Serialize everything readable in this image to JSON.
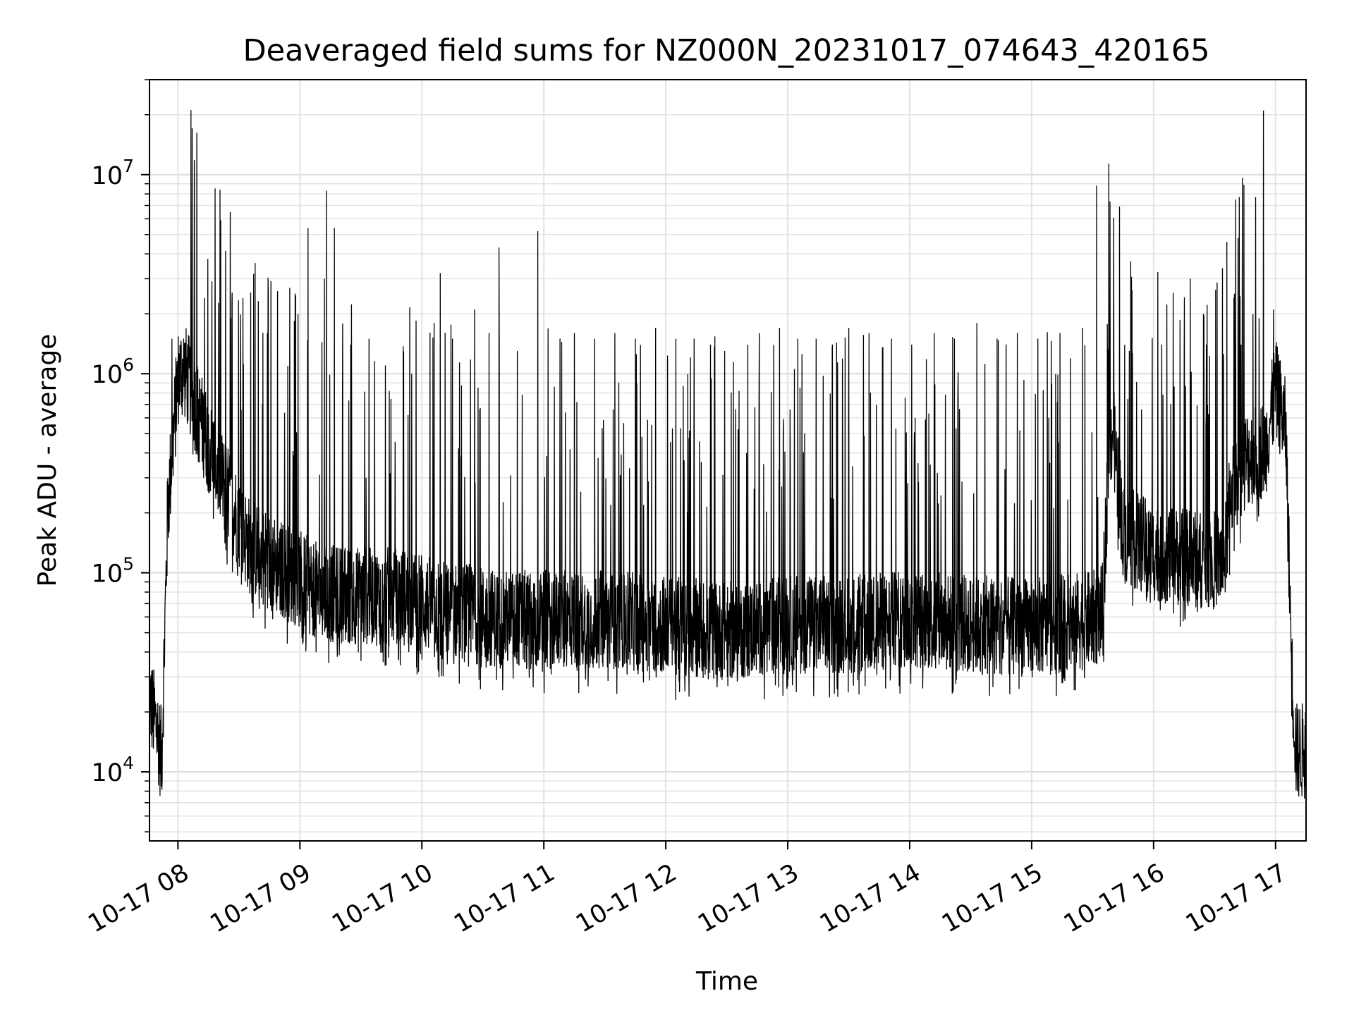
{
  "chart_data": {
    "type": "line",
    "title": "Deaveraged field sums for NZ000N_20231017_074643_420165",
    "xlabel": "Time",
    "ylabel": "Peak ADU - average",
    "yscale": "log",
    "ylim": [
      4500,
      30000000
    ],
    "xlim": [
      "10-17 07:46",
      "10-17 17:15"
    ],
    "grid": true,
    "line_color": "#000000",
    "x_ticks": [
      {
        "value": "10-17 08:00",
        "label": "10-17 08"
      },
      {
        "value": "10-17 09:00",
        "label": "10-17 09"
      },
      {
        "value": "10-17 10:00",
        "label": "10-17 10"
      },
      {
        "value": "10-17 11:00",
        "label": "10-17 11"
      },
      {
        "value": "10-17 12:00",
        "label": "10-17 12"
      },
      {
        "value": "10-17 13:00",
        "label": "10-17 13"
      },
      {
        "value": "10-17 14:00",
        "label": "10-17 14"
      },
      {
        "value": "10-17 15:00",
        "label": "10-17 15"
      },
      {
        "value": "10-17 16:00",
        "label": "10-17 16"
      },
      {
        "value": "10-17 17:00",
        "label": "10-17 17"
      }
    ],
    "y_ticks": [
      {
        "value": 10000,
        "base": "10",
        "exp": "4"
      },
      {
        "value": 100000,
        "base": "10",
        "exp": "5"
      },
      {
        "value": 1000000,
        "base": "10",
        "exp": "6"
      },
      {
        "value": 10000000,
        "base": "10",
        "exp": "7"
      }
    ],
    "envelope": {
      "x": [
        "10-17 07:46",
        "10-17 07:50",
        "10-17 07:52",
        "10-17 07:55",
        "10-17 08:00",
        "10-17 08:03",
        "10-17 08:10",
        "10-17 08:20",
        "10-17 08:35",
        "10-17 08:50",
        "10-17 09:10",
        "10-17 09:30",
        "10-17 09:50",
        "10-17 10:10",
        "10-17 10:40",
        "10-17 11:00",
        "10-17 11:30",
        "10-17 12:00",
        "10-17 12:30",
        "10-17 13:00",
        "10-17 13:30",
        "10-17 14:00",
        "10-17 14:30",
        "10-17 15:00",
        "10-17 15:30",
        "10-17 15:35",
        "10-17 15:38",
        "10-17 15:40",
        "10-17 15:45",
        "10-17 16:00",
        "10-17 16:20",
        "10-17 16:35",
        "10-17 16:38",
        "10-17 16:45",
        "10-17 16:55",
        "10-17 17:00",
        "10-17 17:05",
        "10-17 17:08",
        "10-17 17:10",
        "10-17 17:15"
      ],
      "base": [
        22000,
        15000,
        11000,
        200000,
        900000,
        1000000,
        600000,
        300000,
        130000,
        100000,
        75000,
        72000,
        72000,
        62000,
        55000,
        55000,
        55000,
        52000,
        48000,
        52000,
        52000,
        55000,
        52000,
        50000,
        55000,
        60000,
        400000,
        500000,
        150000,
        120000,
        110000,
        110000,
        250000,
        350000,
        400000,
        800000,
        500000,
        30000,
        12000,
        12000
      ]
    },
    "spikes": [
      {
        "x": "10-17 07:57",
        "y": 1500000
      },
      {
        "x": "10-17 08:08",
        "y": 1700000
      },
      {
        "x": "10-17 08:13",
        "y": 2400000
      },
      {
        "x": "10-17 08:21",
        "y": 5900000
      },
      {
        "x": "10-17 08:26",
        "y": 1900000
      },
      {
        "x": "10-17 08:32",
        "y": 2400000
      },
      {
        "x": "10-17 08:38",
        "y": 3600000
      },
      {
        "x": "10-17 08:44",
        "y": 1600000
      },
      {
        "x": "10-17 08:49",
        "y": 2600000
      },
      {
        "x": "10-17 08:55",
        "y": 2700000
      },
      {
        "x": "10-17 09:04",
        "y": 5400000
      },
      {
        "x": "10-17 09:12",
        "y": 3000000
      },
      {
        "x": "10-17 09:13",
        "y": 8300000
      },
      {
        "x": "10-17 09:17",
        "y": 5400000
      },
      {
        "x": "10-17 09:25",
        "y": 1400000
      },
      {
        "x": "10-17 09:34",
        "y": 1500000
      },
      {
        "x": "10-17 09:42",
        "y": 1100000
      },
      {
        "x": "10-17 09:55",
        "y": 1000000
      },
      {
        "x": "10-17 10:06",
        "y": 1800000
      },
      {
        "x": "10-17 10:09",
        "y": 3200000
      },
      {
        "x": "10-17 10:15",
        "y": 1500000
      },
      {
        "x": "10-17 10:26",
        "y": 2100000
      },
      {
        "x": "10-17 10:33",
        "y": 1600000
      },
      {
        "x": "10-17 10:38",
        "y": 4300000
      },
      {
        "x": "10-17 10:47",
        "y": 1300000
      },
      {
        "x": "10-17 10:57",
        "y": 5200000
      },
      {
        "x": "10-17 11:08",
        "y": 1500000
      },
      {
        "x": "10-17 11:15",
        "y": 1600000
      },
      {
        "x": "10-17 11:25",
        "y": 1500000
      },
      {
        "x": "10-17 11:35",
        "y": 1600000
      },
      {
        "x": "10-17 11:45",
        "y": 1500000
      },
      {
        "x": "10-17 11:55",
        "y": 1700000
      },
      {
        "x": "10-17 12:05",
        "y": 1500000
      },
      {
        "x": "10-17 12:14",
        "y": 1500000
      },
      {
        "x": "10-17 12:22",
        "y": 1400000
      },
      {
        "x": "10-17 12:29",
        "y": 1300000
      },
      {
        "x": "10-17 12:36",
        "y": 820000
      },
      {
        "x": "10-17 12:46",
        "y": 1600000
      },
      {
        "x": "10-17 12:56",
        "y": 1700000
      },
      {
        "x": "10-17 13:05",
        "y": 1500000
      },
      {
        "x": "10-17 13:14",
        "y": 1500000
      },
      {
        "x": "10-17 13:22",
        "y": 1400000
      },
      {
        "x": "10-17 13:30",
        "y": 1700000
      },
      {
        "x": "10-17 13:40",
        "y": 1600000
      },
      {
        "x": "10-17 13:51",
        "y": 1500000
      },
      {
        "x": "10-17 14:01",
        "y": 1400000
      },
      {
        "x": "10-17 14:12",
        "y": 1600000
      },
      {
        "x": "10-17 14:22",
        "y": 1500000
      },
      {
        "x": "10-17 14:33",
        "y": 1800000
      },
      {
        "x": "10-17 14:43",
        "y": 1500000
      },
      {
        "x": "10-17 14:53",
        "y": 1600000
      },
      {
        "x": "10-17 15:03",
        "y": 1500000
      },
      {
        "x": "10-17 15:14",
        "y": 1600000
      },
      {
        "x": "10-17 15:25",
        "y": 1700000
      },
      {
        "x": "10-17 15:32",
        "y": 8800000
      },
      {
        "x": "10-17 15:48",
        "y": 1300000
      },
      {
        "x": "10-17 16:04",
        "y": 1400000
      },
      {
        "x": "10-17 16:15",
        "y": 1300000
      },
      {
        "x": "10-17 16:18",
        "y": 3000000
      },
      {
        "x": "10-17 16:26",
        "y": 1400000
      },
      {
        "x": "10-17 16:36",
        "y": 4600000
      },
      {
        "x": "10-17 16:43",
        "y": 1400000
      },
      {
        "x": "10-17 16:54",
        "y": 21000000
      },
      {
        "x": "10-17 16:59",
        "y": 2100000
      }
    ]
  }
}
